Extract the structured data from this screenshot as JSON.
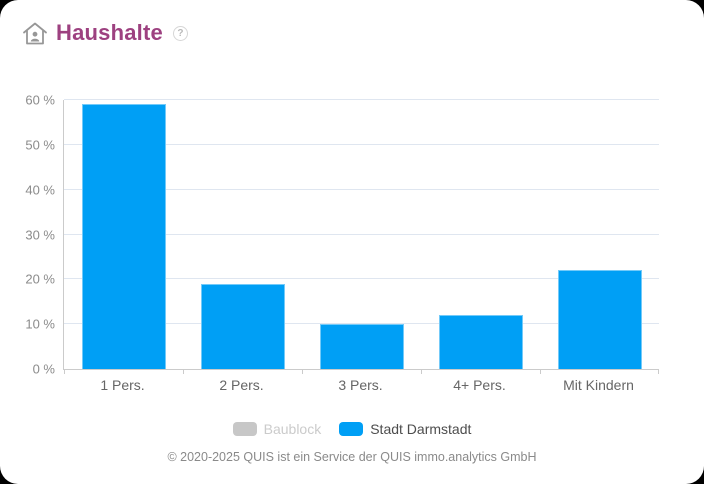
{
  "header": {
    "title": "Haushalte",
    "help_label": "?"
  },
  "chart_data": {
    "type": "bar",
    "title": "Haushalte",
    "categories": [
      "1 Pers.",
      "2 Pers.",
      "3 Pers.",
      "4+ Pers.",
      "Mit Kindern"
    ],
    "series": [
      {
        "name": "Baublock",
        "values": [],
        "color": "#c7c7c7",
        "enabled": false
      },
      {
        "name": "Stadt Darmstadt",
        "values": [
          59,
          19,
          10,
          12,
          22
        ],
        "color": "#009ff5",
        "enabled": true
      }
    ],
    "xlabel": "",
    "ylabel": "",
    "ylim": [
      0,
      60
    ],
    "y_ticks": [
      0,
      10,
      20,
      30,
      40,
      50,
      60
    ],
    "y_tick_suffix": " %",
    "grid": true,
    "legend_position": "bottom"
  },
  "legend": {
    "items": [
      {
        "label": "Baublock",
        "color": "#c7c7c7",
        "enabled": false
      },
      {
        "label": "Stadt Darmstadt",
        "color": "#009ff5",
        "enabled": true
      }
    ]
  },
  "footer": {
    "copyright": "© 2020-2025 QUIS ist ein Service der QUIS immo.analytics GmbH"
  },
  "colors": {
    "bar_blue": "#009ff5",
    "title_purple": "#9d4180",
    "gridline": "#dfe6f0",
    "axis_line": "#cbcbcb",
    "disabled_gray": "#c7c7c7"
  }
}
